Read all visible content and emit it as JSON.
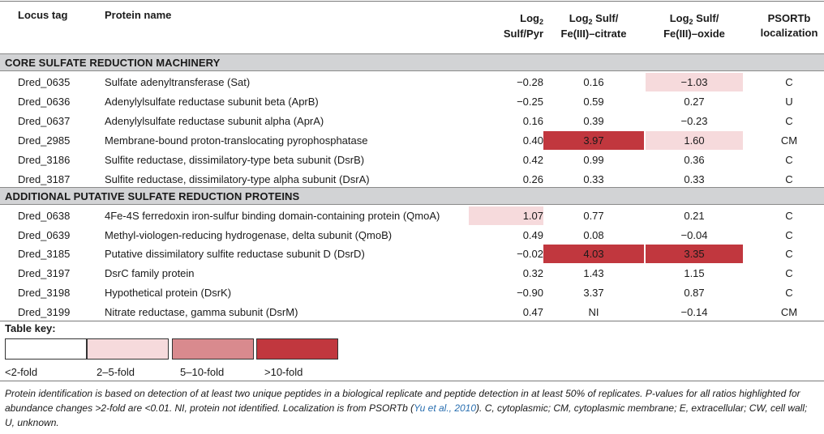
{
  "header": {
    "locus": "Locus tag",
    "protein": "Protein name",
    "log_sub": "2",
    "col_pyr_line1": "Log",
    "col_pyr_line2": "Sulf/Pyr",
    "col_cit_line1a": "Log",
    "col_cit_line1b": " Sulf/",
    "col_cit_line2": "Fe(III)–citrate",
    "col_oxi_line1a": "Log",
    "col_oxi_line1b": " Sulf/",
    "col_oxi_line2": "Fe(III)–oxide",
    "col_loc_line1": "PSORTb",
    "col_loc_line2": "localization"
  },
  "sections": {
    "core": "CORE SULFATE REDUCTION MACHINERY",
    "additional": "ADDITIONAL PUTATIVE SULFATE REDUCTION PROTEINS"
  },
  "core_rows": [
    {
      "locus": "Dred_0635",
      "name": "Sulfate adenyltransferase (Sat)",
      "pyr": "−0.28",
      "cit": "0.16",
      "oxi": "−1.03",
      "loc": "C"
    },
    {
      "locus": "Dred_0636",
      "name": "Adenylylsulfate reductase subunit beta (AprB)",
      "pyr": "−0.25",
      "cit": "0.59",
      "oxi": "0.27",
      "loc": "U"
    },
    {
      "locus": "Dred_0637",
      "name": "Adenylylsulfate reductase subunit alpha (AprA)",
      "pyr": "0.16",
      "cit": "0.39",
      "oxi": "−0.23",
      "loc": "C"
    },
    {
      "locus": "Dred_2985",
      "name": "Membrane-bound proton-translocating pyrophosphatase",
      "pyr": "0.40",
      "cit": "3.97",
      "oxi": "1.60",
      "loc": "CM"
    },
    {
      "locus": "Dred_3186",
      "name": "Sulfite reductase, dissimilatory-type beta subunit (DsrB)",
      "pyr": "0.42",
      "cit": "0.99",
      "oxi": "0.36",
      "loc": "C"
    },
    {
      "locus": "Dred_3187",
      "name": "Sulfite reductase, dissimilatory-type alpha subunit (DsrA)",
      "pyr": "0.26",
      "cit": "0.33",
      "oxi": "0.33",
      "loc": "C"
    }
  ],
  "add_rows": [
    {
      "locus": "Dred_0638",
      "name": "4Fe-4S ferredoxin iron-sulfur binding domain-containing protein (QmoA)",
      "pyr": "1.07",
      "cit": "0.77",
      "oxi": "0.21",
      "loc": "C"
    },
    {
      "locus": "Dred_0639",
      "name": "Methyl-viologen-reducing hydrogenase, delta subunit (QmoB)",
      "pyr": "0.49",
      "cit": "0.08",
      "oxi": "−0.04",
      "loc": "C"
    },
    {
      "locus": "Dred_3185",
      "name": "Putative dissimilatory sulfite reductase subunit D (DsrD)",
      "pyr": "−0.02",
      "cit": "4.03",
      "oxi": "3.35",
      "loc": "C"
    },
    {
      "locus": "Dred_3197",
      "name": "DsrC family protein",
      "pyr": "0.32",
      "cit": "1.43",
      "oxi": "1.15",
      "loc": "C"
    },
    {
      "locus": "Dred_3198",
      "name": "Hypothetical protein (DsrK)",
      "pyr": "−0.90",
      "cit": "3.37",
      "oxi": "0.87",
      "loc": "C"
    },
    {
      "locus": "Dred_3199",
      "name": "Nitrate reductase, gamma subunit (DsrM)",
      "pyr": "0.47",
      "cit": "NI",
      "oxi": "−0.14",
      "loc": "CM"
    }
  ],
  "key": {
    "title": "Table key:",
    "labels": [
      "<2-fold",
      "2–5-fold",
      "5–10-fold",
      ">10-fold"
    ],
    "colors": [
      "#ffffff",
      "#f6dadc",
      "#d98a8e",
      "#c1373e"
    ]
  },
  "footnote": {
    "part1": "Protein identification is based on detection of at least two unique peptides in a biological replicate and peptide detection in at least 50% of replicates. P-values for all ratios highlighted for abundance changes >2-fold are <0.01. NI, protein not identified. Localization is from PSORTb (",
    "cite": "Yu et al., 2010",
    "part2": "). C, cytoplasmic; CM, cytoplasmic membrane; E, extracellular; CW, cell wall; U, unknown."
  }
}
